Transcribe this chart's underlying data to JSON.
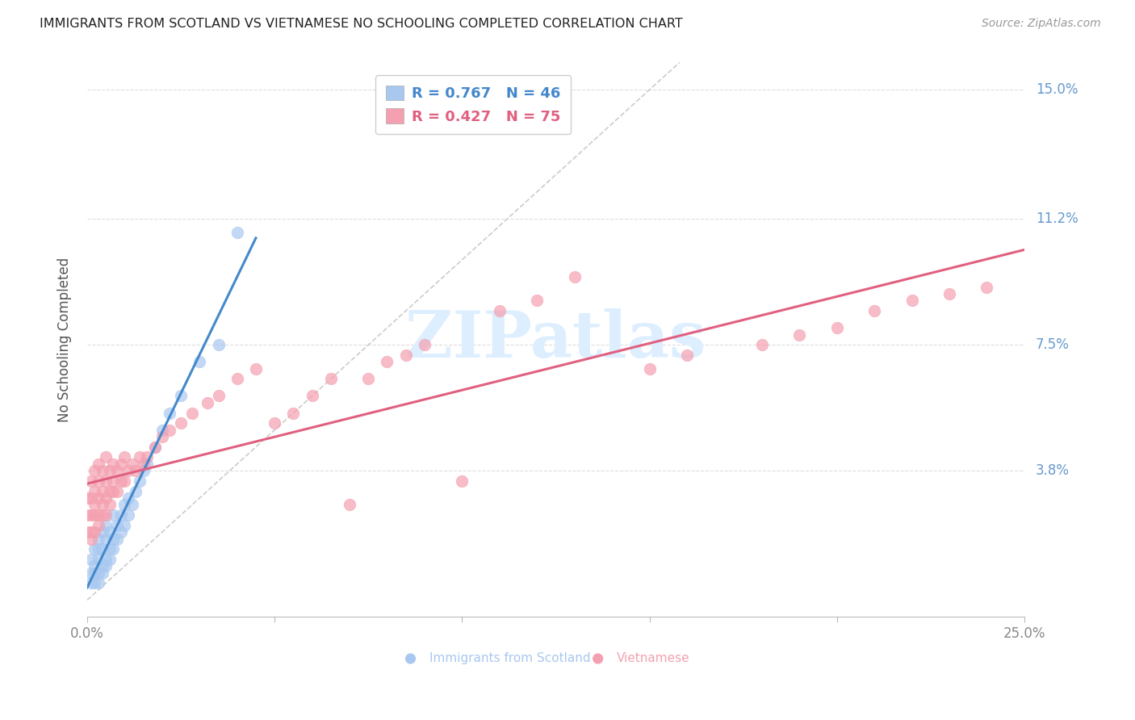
{
  "title": "IMMIGRANTS FROM SCOTLAND VS VIETNAMESE NO SCHOOLING COMPLETED CORRELATION CHART",
  "source": "Source: ZipAtlas.com",
  "ylabel_label": "No Schooling Completed",
  "xlim": [
    0.0,
    0.25
  ],
  "ylim": [
    -0.005,
    0.158
  ],
  "ylabel_tick_vals": [
    0.15,
    0.112,
    0.075,
    0.038
  ],
  "ylabel_tick_labels": [
    "15.0%",
    "11.2%",
    "7.5%",
    "3.8%"
  ],
  "xtick_vals": [
    0.0,
    0.25
  ],
  "xtick_labels": [
    "0.0%",
    "25.0%"
  ],
  "scotland_color": "#a8c8f0",
  "vietnamese_color": "#f4a0b0",
  "scotland_line_color": "#4488cc",
  "vietnamese_line_color": "#e06080",
  "diagonal_color": "#cccccc",
  "background_color": "#ffffff",
  "grid_color": "#dddddd",
  "right_label_color": "#6699cc",
  "watermark_color": "#ddeeff",
  "legend_R_scotland": "R = 0.767",
  "legend_N_scotland": "N = 46",
  "legend_R_vietnamese": "R = 0.427",
  "legend_N_vietnamese": "N = 75",
  "scotland_legend_text_color": "#4488cc",
  "vietnamese_legend_text_color": "#e06080",
  "scotland_x": [
    0.001,
    0.001,
    0.001,
    0.002,
    0.002,
    0.002,
    0.002,
    0.003,
    0.003,
    0.003,
    0.003,
    0.003,
    0.004,
    0.004,
    0.004,
    0.004,
    0.005,
    0.005,
    0.005,
    0.005,
    0.006,
    0.006,
    0.006,
    0.007,
    0.007,
    0.007,
    0.008,
    0.008,
    0.009,
    0.009,
    0.01,
    0.01,
    0.011,
    0.011,
    0.012,
    0.013,
    0.014,
    0.015,
    0.016,
    0.018,
    0.02,
    0.022,
    0.025,
    0.03,
    0.035,
    0.04
  ],
  "scotland_y": [
    0.005,
    0.008,
    0.012,
    0.005,
    0.008,
    0.01,
    0.015,
    0.005,
    0.008,
    0.012,
    0.015,
    0.018,
    0.008,
    0.01,
    0.015,
    0.02,
    0.01,
    0.012,
    0.018,
    0.022,
    0.012,
    0.015,
    0.02,
    0.015,
    0.018,
    0.025,
    0.018,
    0.022,
    0.02,
    0.025,
    0.022,
    0.028,
    0.025,
    0.03,
    0.028,
    0.032,
    0.035,
    0.038,
    0.04,
    0.045,
    0.05,
    0.055,
    0.06,
    0.07,
    0.075,
    0.108
  ],
  "vietnamese_x": [
    0.0,
    0.0,
    0.0,
    0.001,
    0.001,
    0.001,
    0.001,
    0.001,
    0.002,
    0.002,
    0.002,
    0.002,
    0.002,
    0.003,
    0.003,
    0.003,
    0.003,
    0.003,
    0.004,
    0.004,
    0.004,
    0.004,
    0.005,
    0.005,
    0.005,
    0.005,
    0.006,
    0.006,
    0.006,
    0.007,
    0.007,
    0.007,
    0.008,
    0.008,
    0.009,
    0.009,
    0.01,
    0.01,
    0.011,
    0.012,
    0.013,
    0.014,
    0.015,
    0.016,
    0.018,
    0.02,
    0.022,
    0.025,
    0.028,
    0.032,
    0.035,
    0.04,
    0.045,
    0.05,
    0.055,
    0.06,
    0.065,
    0.07,
    0.075,
    0.08,
    0.085,
    0.09,
    0.1,
    0.11,
    0.12,
    0.13,
    0.15,
    0.16,
    0.18,
    0.19,
    0.2,
    0.21,
    0.22,
    0.23,
    0.24
  ],
  "vietnamese_y": [
    0.02,
    0.025,
    0.03,
    0.018,
    0.02,
    0.025,
    0.03,
    0.035,
    0.02,
    0.025,
    0.028,
    0.032,
    0.038,
    0.022,
    0.025,
    0.03,
    0.035,
    0.04,
    0.025,
    0.028,
    0.032,
    0.038,
    0.025,
    0.03,
    0.035,
    0.042,
    0.028,
    0.032,
    0.038,
    0.032,
    0.035,
    0.04,
    0.032,
    0.038,
    0.035,
    0.04,
    0.035,
    0.042,
    0.038,
    0.04,
    0.038,
    0.042,
    0.04,
    0.042,
    0.045,
    0.048,
    0.05,
    0.052,
    0.055,
    0.058,
    0.06,
    0.065,
    0.068,
    0.052,
    0.055,
    0.06,
    0.065,
    0.028,
    0.065,
    0.07,
    0.072,
    0.075,
    0.035,
    0.085,
    0.088,
    0.095,
    0.068,
    0.072,
    0.075,
    0.078,
    0.08,
    0.085,
    0.088,
    0.09,
    0.092
  ]
}
